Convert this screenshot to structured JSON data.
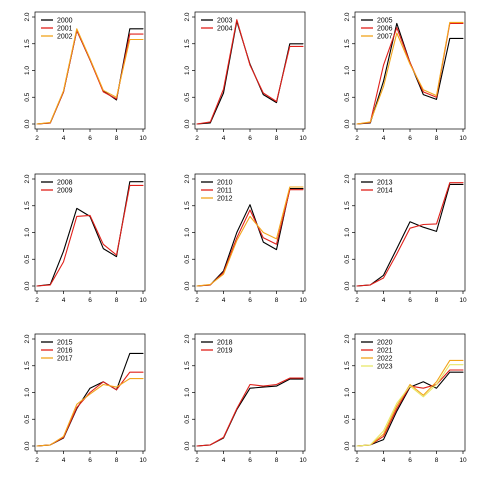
{
  "chart_data": [
    {
      "type": "line",
      "x": [
        2,
        3,
        4,
        5,
        6,
        7,
        8,
        9,
        10
      ],
      "ylim": [
        0,
        2.0
      ],
      "xticks": [
        2,
        4,
        6,
        8,
        10
      ],
      "yticks": [
        0.0,
        0.5,
        1.0,
        1.5,
        2.0
      ],
      "ytick_labels": [
        "0.0",
        "0.5",
        "1.0",
        "1.5",
        "2.0"
      ],
      "legend_position": "top-left",
      "series": [
        {
          "name": "2000",
          "color": "#000000",
          "values": [
            0,
            0.02,
            0.6,
            1.75,
            1.2,
            0.62,
            0.45,
            1.78,
            1.78
          ]
        },
        {
          "name": "2001",
          "color": "#e0201a",
          "values": [
            0,
            0.02,
            0.6,
            1.75,
            1.2,
            0.6,
            0.47,
            1.68,
            1.68
          ]
        },
        {
          "name": "2002",
          "color": "#f2a51c",
          "values": [
            0,
            0.03,
            0.62,
            1.78,
            1.22,
            0.63,
            0.5,
            1.58,
            1.58
          ]
        }
      ]
    },
    {
      "type": "line",
      "x": [
        2,
        3,
        4,
        5,
        6,
        7,
        8,
        9,
        10
      ],
      "ylim": [
        0,
        2.0
      ],
      "xticks": [
        2,
        4,
        6,
        8,
        10
      ],
      "yticks": [
        0.0,
        0.5,
        1.0,
        1.5,
        2.0
      ],
      "ytick_labels": [
        "0.0",
        "0.5",
        "1.0",
        "1.5",
        "2.0"
      ],
      "legend_position": "top-left",
      "series": [
        {
          "name": "2003",
          "color": "#000000",
          "values": [
            0,
            0.02,
            0.58,
            1.92,
            1.12,
            0.55,
            0.4,
            1.5,
            1.5
          ]
        },
        {
          "name": "2004",
          "color": "#e0201a",
          "values": [
            0,
            0.04,
            0.65,
            1.95,
            1.1,
            0.58,
            0.42,
            1.45,
            1.45
          ]
        }
      ]
    },
    {
      "type": "line",
      "x": [
        2,
        3,
        4,
        5,
        6,
        7,
        8,
        9,
        10
      ],
      "ylim": [
        0,
        2.0
      ],
      "xticks": [
        2,
        4,
        6,
        8,
        10
      ],
      "yticks": [
        0.0,
        0.5,
        1.0,
        1.5,
        2.0
      ],
      "ytick_labels": [
        "0.0",
        "0.5",
        "1.0",
        "1.5",
        "2.0"
      ],
      "legend_position": "top-left",
      "series": [
        {
          "name": "2005",
          "color": "#000000",
          "values": [
            0,
            0.02,
            0.8,
            1.88,
            1.15,
            0.55,
            0.46,
            1.6,
            1.6
          ]
        },
        {
          "name": "2006",
          "color": "#e0201a",
          "values": [
            0,
            0.03,
            1.1,
            1.8,
            1.15,
            0.6,
            0.5,
            1.88,
            1.88
          ]
        },
        {
          "name": "2007",
          "color": "#f2a51c",
          "values": [
            0,
            0.04,
            0.7,
            1.7,
            1.12,
            0.64,
            0.53,
            1.9,
            1.9
          ]
        }
      ]
    },
    {
      "type": "line",
      "x": [
        2,
        3,
        4,
        5,
        6,
        7,
        8,
        9,
        10
      ],
      "ylim": [
        0,
        2.0
      ],
      "xticks": [
        2,
        4,
        6,
        8,
        10
      ],
      "yticks": [
        0.0,
        0.5,
        1.0,
        1.5,
        2.0
      ],
      "ytick_labels": [
        "0.0",
        "0.5",
        "1.0",
        "1.5",
        "2.0"
      ],
      "legend_position": "top-left",
      "series": [
        {
          "name": "2008",
          "color": "#000000",
          "values": [
            0,
            0.03,
            0.65,
            1.45,
            1.3,
            0.7,
            0.55,
            1.95,
            1.95
          ]
        },
        {
          "name": "2009",
          "color": "#e0201a",
          "values": [
            0,
            0.02,
            0.45,
            1.3,
            1.32,
            0.78,
            0.58,
            1.88,
            1.88
          ]
        }
      ]
    },
    {
      "type": "line",
      "x": [
        2,
        3,
        4,
        5,
        6,
        7,
        8,
        9,
        10
      ],
      "ylim": [
        0,
        2.0
      ],
      "xticks": [
        2,
        4,
        6,
        8,
        10
      ],
      "yticks": [
        0.0,
        0.5,
        1.0,
        1.5,
        2.0
      ],
      "ytick_labels": [
        "0.0",
        "0.5",
        "1.0",
        "1.5",
        "2.0"
      ],
      "legend_position": "top-left",
      "series": [
        {
          "name": "2010",
          "color": "#000000",
          "values": [
            0,
            0.02,
            0.28,
            1.0,
            1.52,
            0.82,
            0.68,
            1.82,
            1.82
          ]
        },
        {
          "name": "2011",
          "color": "#e0201a",
          "values": [
            0,
            0.02,
            0.25,
            0.9,
            1.42,
            0.9,
            0.78,
            1.8,
            1.8
          ]
        },
        {
          "name": "2012",
          "color": "#f2a51c",
          "values": [
            0,
            0.03,
            0.22,
            0.85,
            1.3,
            1.0,
            0.88,
            1.85,
            1.85
          ]
        }
      ]
    },
    {
      "type": "line",
      "x": [
        2,
        3,
        4,
        5,
        6,
        7,
        8,
        9,
        10
      ],
      "ylim": [
        0,
        2.0
      ],
      "xticks": [
        2,
        4,
        6,
        8,
        10
      ],
      "yticks": [
        0.0,
        0.5,
        1.0,
        1.5,
        2.0
      ],
      "ytick_labels": [
        "0.0",
        "0.5",
        "1.0",
        "1.5",
        "2.0"
      ],
      "legend_position": "top-left",
      "series": [
        {
          "name": "2013",
          "color": "#000000",
          "values": [
            0,
            0.02,
            0.2,
            0.7,
            1.2,
            1.1,
            1.02,
            1.9,
            1.9
          ]
        },
        {
          "name": "2014",
          "color": "#e0201a",
          "values": [
            0,
            0.02,
            0.15,
            0.6,
            1.08,
            1.15,
            1.16,
            1.93,
            1.93
          ]
        }
      ]
    },
    {
      "type": "line",
      "x": [
        2,
        3,
        4,
        5,
        6,
        7,
        8,
        9,
        10
      ],
      "ylim": [
        0,
        2.0
      ],
      "xticks": [
        2,
        4,
        6,
        8,
        10
      ],
      "yticks": [
        0.0,
        0.5,
        1.0,
        1.5,
        2.0
      ],
      "ytick_labels": [
        "0.0",
        "0.5",
        "1.0",
        "1.5",
        "2.0"
      ],
      "legend_position": "top-left",
      "series": [
        {
          "name": "2015",
          "color": "#000000",
          "values": [
            0,
            0.02,
            0.15,
            0.7,
            1.08,
            1.2,
            1.05,
            1.73,
            1.73
          ]
        },
        {
          "name": "2016",
          "color": "#e0201a",
          "values": [
            0,
            0.02,
            0.16,
            0.72,
            1.0,
            1.2,
            1.05,
            1.38,
            1.38
          ]
        },
        {
          "name": "2017",
          "color": "#f2a51c",
          "values": [
            0,
            0.02,
            0.18,
            0.78,
            0.97,
            1.15,
            1.1,
            1.26,
            1.26
          ]
        }
      ]
    },
    {
      "type": "line",
      "x": [
        2,
        3,
        4,
        5,
        6,
        7,
        8,
        9,
        10
      ],
      "ylim": [
        0,
        2.0
      ],
      "xticks": [
        2,
        4,
        6,
        8,
        10
      ],
      "yticks": [
        0.0,
        0.5,
        1.0,
        1.5,
        2.0
      ],
      "ytick_labels": [
        "0.0",
        "0.5",
        "1.0",
        "1.5",
        "2.0"
      ],
      "legend_position": "top-left",
      "series": [
        {
          "name": "2018",
          "color": "#000000",
          "values": [
            0,
            0.02,
            0.15,
            0.68,
            1.08,
            1.1,
            1.12,
            1.25,
            1.25
          ]
        },
        {
          "name": "2019",
          "color": "#e0201a",
          "values": [
            0,
            0.02,
            0.16,
            0.7,
            1.15,
            1.12,
            1.15,
            1.27,
            1.27
          ]
        }
      ]
    },
    {
      "type": "line",
      "x": [
        2,
        3,
        4,
        5,
        6,
        7,
        8,
        9,
        10
      ],
      "ylim": [
        0,
        2.0
      ],
      "xticks": [
        2,
        4,
        6,
        8,
        10
      ],
      "yticks": [
        0.0,
        0.5,
        1.0,
        1.5,
        2.0
      ],
      "ytick_labels": [
        "0.0",
        "0.5",
        "1.0",
        "1.5",
        "2.0"
      ],
      "legend_position": "top-left",
      "series": [
        {
          "name": "2020",
          "color": "#000000",
          "values": [
            0,
            0.02,
            0.12,
            0.65,
            1.1,
            1.2,
            1.08,
            1.38,
            1.38
          ]
        },
        {
          "name": "2021",
          "color": "#e0201a",
          "values": [
            0,
            0.02,
            0.18,
            0.7,
            1.12,
            1.08,
            1.15,
            1.42,
            1.42
          ]
        },
        {
          "name": "2022",
          "color": "#f2a51c",
          "values": [
            0,
            0.02,
            0.22,
            0.75,
            1.15,
            0.95,
            1.2,
            1.6,
            1.6
          ]
        },
        {
          "name": "2023",
          "color": "#e8e86a",
          "values": [
            0,
            0.02,
            0.28,
            0.8,
            1.12,
            0.92,
            1.15,
            1.52,
            1.52
          ]
        }
      ]
    }
  ]
}
